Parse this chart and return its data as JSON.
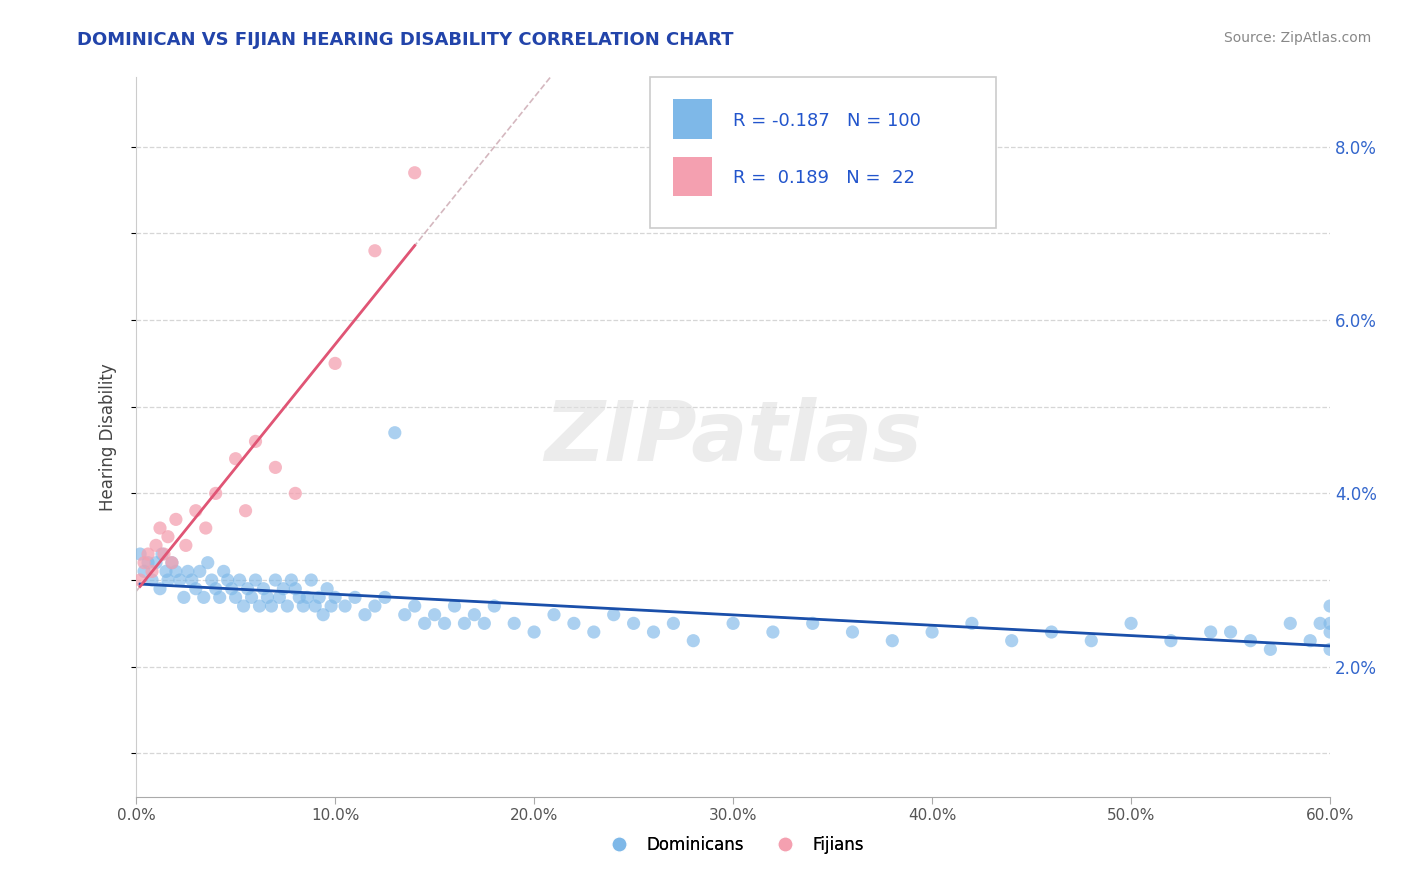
{
  "title": "DOMINICAN VS FIJIAN HEARING DISABILITY CORRELATION CHART",
  "source_text": "Source: ZipAtlas.com",
  "ylabel": "Hearing Disability",
  "xlim": [
    0.0,
    0.6
  ],
  "ylim": [
    0.005,
    0.088
  ],
  "xticks": [
    0.0,
    0.1,
    0.2,
    0.3,
    0.4,
    0.5,
    0.6
  ],
  "xticklabels": [
    "0.0%",
    "10.0%",
    "20.0%",
    "30.0%",
    "40.0%",
    "50.0%",
    "60.0%"
  ],
  "yticks": [
    0.02,
    0.04,
    0.06,
    0.08
  ],
  "yticklabels": [
    "2.0%",
    "4.0%",
    "6.0%",
    "8.0%"
  ],
  "dominican_color": "#7eb8e8",
  "fijian_color": "#f4a0b0",
  "dominican_line_color": "#1a4faa",
  "fijian_line_color": "#e05575",
  "trend_ext_color": "#d0b0b8",
  "trend_ext_dom_color": "#c0c0c0",
  "R_dominican": -0.187,
  "N_dominican": 100,
  "R_fijian": 0.189,
  "N_fijian": 22,
  "background_color": "#ffffff",
  "grid_color": "#cccccc",
  "watermark_text": "ZIPatlas",
  "legend_label_1": "Dominicans",
  "legend_label_2": "Fijians",
  "dominican_x": [
    0.002,
    0.004,
    0.006,
    0.008,
    0.01,
    0.012,
    0.013,
    0.015,
    0.016,
    0.018,
    0.02,
    0.022,
    0.024,
    0.026,
    0.028,
    0.03,
    0.032,
    0.034,
    0.036,
    0.038,
    0.04,
    0.042,
    0.044,
    0.046,
    0.048,
    0.05,
    0.052,
    0.054,
    0.056,
    0.058,
    0.06,
    0.062,
    0.064,
    0.066,
    0.068,
    0.07,
    0.072,
    0.074,
    0.076,
    0.078,
    0.08,
    0.082,
    0.084,
    0.086,
    0.088,
    0.09,
    0.092,
    0.094,
    0.096,
    0.098,
    0.1,
    0.105,
    0.11,
    0.115,
    0.12,
    0.125,
    0.13,
    0.135,
    0.14,
    0.145,
    0.15,
    0.155,
    0.16,
    0.165,
    0.17,
    0.175,
    0.18,
    0.19,
    0.2,
    0.21,
    0.22,
    0.23,
    0.24,
    0.25,
    0.26,
    0.27,
    0.28,
    0.3,
    0.32,
    0.34,
    0.36,
    0.38,
    0.4,
    0.42,
    0.44,
    0.46,
    0.48,
    0.5,
    0.52,
    0.54,
    0.55,
    0.56,
    0.57,
    0.58,
    0.59,
    0.595,
    0.6,
    0.6,
    0.6,
    0.6
  ],
  "dominican_y": [
    0.033,
    0.031,
    0.032,
    0.03,
    0.032,
    0.029,
    0.033,
    0.031,
    0.03,
    0.032,
    0.031,
    0.03,
    0.028,
    0.031,
    0.03,
    0.029,
    0.031,
    0.028,
    0.032,
    0.03,
    0.029,
    0.028,
    0.031,
    0.03,
    0.029,
    0.028,
    0.03,
    0.027,
    0.029,
    0.028,
    0.03,
    0.027,
    0.029,
    0.028,
    0.027,
    0.03,
    0.028,
    0.029,
    0.027,
    0.03,
    0.029,
    0.028,
    0.027,
    0.028,
    0.03,
    0.027,
    0.028,
    0.026,
    0.029,
    0.027,
    0.028,
    0.027,
    0.028,
    0.026,
    0.027,
    0.028,
    0.047,
    0.026,
    0.027,
    0.025,
    0.026,
    0.025,
    0.027,
    0.025,
    0.026,
    0.025,
    0.027,
    0.025,
    0.024,
    0.026,
    0.025,
    0.024,
    0.026,
    0.025,
    0.024,
    0.025,
    0.023,
    0.025,
    0.024,
    0.025,
    0.024,
    0.023,
    0.024,
    0.025,
    0.023,
    0.024,
    0.023,
    0.025,
    0.023,
    0.024,
    0.024,
    0.023,
    0.022,
    0.025,
    0.023,
    0.025,
    0.022,
    0.024,
    0.025,
    0.027
  ],
  "fijian_x": [
    0.002,
    0.004,
    0.006,
    0.008,
    0.01,
    0.012,
    0.014,
    0.016,
    0.018,
    0.02,
    0.025,
    0.03,
    0.035,
    0.04,
    0.05,
    0.055,
    0.06,
    0.07,
    0.08,
    0.1,
    0.12,
    0.14
  ],
  "fijian_y": [
    0.03,
    0.032,
    0.033,
    0.031,
    0.034,
    0.036,
    0.033,
    0.035,
    0.032,
    0.037,
    0.034,
    0.038,
    0.036,
    0.04,
    0.044,
    0.038,
    0.046,
    0.043,
    0.04,
    0.055,
    0.068,
    0.077
  ]
}
